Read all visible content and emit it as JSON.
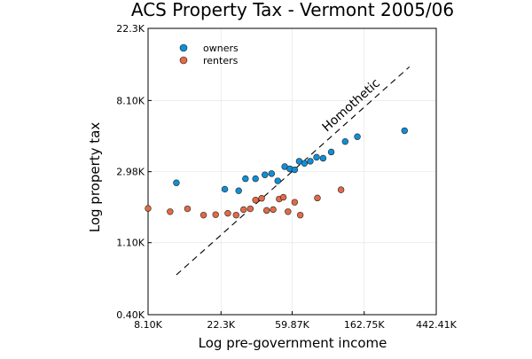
{
  "chart_data": {
    "type": "scatter",
    "title": "ACS Property Tax - Vermont 2005/06",
    "xlabel": "Log pre-government income",
    "ylabel": "Log property tax",
    "x_scale": "log",
    "y_scale": "log",
    "xlim": [
      8100,
      442410
    ],
    "ylim": [
      400,
      22300
    ],
    "x_ticks": [
      {
        "value": 8100,
        "label": "8.10K"
      },
      {
        "value": 22300,
        "label": "22.3K"
      },
      {
        "value": 59870,
        "label": "59.87K"
      },
      {
        "value": 162750,
        "label": "162.75K"
      },
      {
        "value": 442410,
        "label": "442.41K"
      }
    ],
    "y_ticks": [
      {
        "value": 400,
        "label": "0.40K"
      },
      {
        "value": 1100,
        "label": "1.10K"
      },
      {
        "value": 2980,
        "label": "2.98K"
      },
      {
        "value": 8100,
        "label": "8.10K"
      },
      {
        "value": 22300,
        "label": "22.3K"
      }
    ],
    "grid": true,
    "legend_position": "top-left",
    "series": [
      {
        "name": "owners",
        "color": "#0f8fd8",
        "points": [
          [
            12000,
            2550
          ],
          [
            23500,
            2330
          ],
          [
            28500,
            2280
          ],
          [
            31300,
            2700
          ],
          [
            36000,
            2700
          ],
          [
            41000,
            2850
          ],
          [
            45000,
            2900
          ],
          [
            49000,
            2620
          ],
          [
            54000,
            3200
          ],
          [
            58000,
            3100
          ],
          [
            62000,
            3060
          ],
          [
            66000,
            3450
          ],
          [
            71000,
            3350
          ],
          [
            77000,
            3450
          ],
          [
            84000,
            3650
          ],
          [
            92000,
            3600
          ],
          [
            103000,
            3930
          ],
          [
            125000,
            4550
          ],
          [
            148000,
            4870
          ],
          [
            285000,
            5300
          ]
        ]
      },
      {
        "name": "renters",
        "color": "#e26a45",
        "points": [
          [
            8100,
            1780
          ],
          [
            11000,
            1700
          ],
          [
            14000,
            1770
          ],
          [
            17500,
            1620
          ],
          [
            20700,
            1630
          ],
          [
            24500,
            1660
          ],
          [
            27500,
            1620
          ],
          [
            30500,
            1750
          ],
          [
            33500,
            1770
          ],
          [
            36000,
            2000
          ],
          [
            39200,
            2050
          ],
          [
            42000,
            1730
          ],
          [
            46000,
            1750
          ],
          [
            50000,
            2030
          ],
          [
            53000,
            2080
          ],
          [
            56500,
            1700
          ],
          [
            62000,
            1940
          ],
          [
            67000,
            1620
          ],
          [
            85000,
            2060
          ],
          [
            118000,
            2310
          ]
        ]
      }
    ],
    "reference_line": {
      "label": "Homothetic",
      "style": "dashed",
      "points": [
        [
          12000,
          700
        ],
        [
          305000,
          13000
        ]
      ]
    }
  }
}
